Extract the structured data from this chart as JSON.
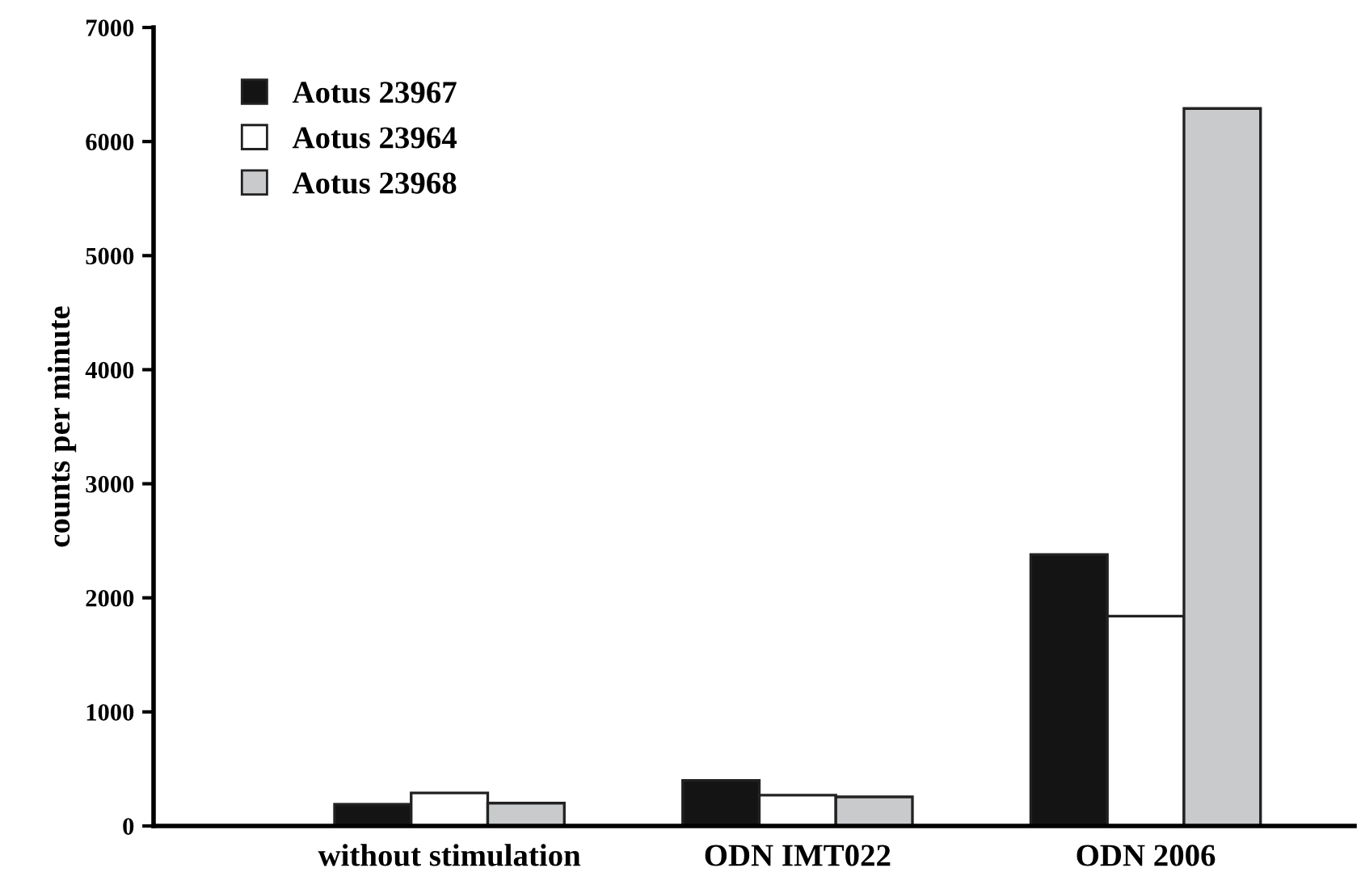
{
  "chart_data": {
    "type": "bar",
    "ylabel": "counts per minute",
    "categories": [
      "without stimulation",
      "ODN IMT022",
      "ODN 2006"
    ],
    "series": [
      {
        "name": "Aotus 23967",
        "color": "#141414",
        "values": [
          190,
          400,
          2380
        ]
      },
      {
        "name": "Aotus 23964",
        "color": "#ffffff",
        "values": [
          290,
          270,
          1840
        ]
      },
      {
        "name": "Aotus 23968",
        "color": "#c9cacc",
        "values": [
          200,
          255,
          6290
        ]
      }
    ],
    "ylim": [
      0,
      7000
    ],
    "yticks": [
      0,
      1000,
      2000,
      3000,
      4000,
      5000,
      6000,
      7000
    ],
    "grid": false,
    "legend": "top left"
  }
}
